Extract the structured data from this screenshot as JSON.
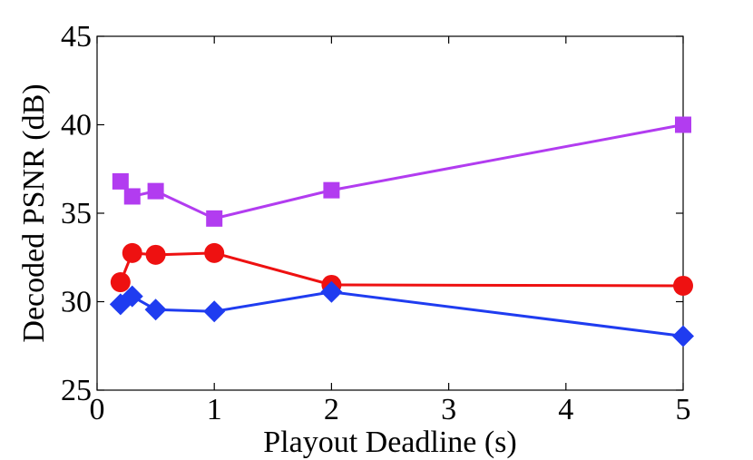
{
  "chart_data": {
    "type": "line",
    "title": "",
    "xlabel": "Playout Deadline (s)",
    "ylabel": "Decoded PSNR (dB)",
    "xlim": [
      0,
      5
    ],
    "ylim": [
      25,
      45
    ],
    "xticks": [
      0,
      1,
      2,
      3,
      4,
      5
    ],
    "yticks": [
      25,
      30,
      35,
      40,
      45
    ],
    "grid": false,
    "legend": "none",
    "series": [
      {
        "marker": "square",
        "color": "#b23cf0",
        "x": [
          0.2,
          0.3,
          0.5,
          1,
          2,
          5
        ],
        "y": [
          36.8,
          35.95,
          36.25,
          34.7,
          36.3,
          40.0
        ]
      },
      {
        "marker": "circle",
        "color": "#ee1111",
        "x": [
          0.2,
          0.3,
          0.5,
          1,
          2,
          5
        ],
        "y": [
          31.1,
          32.75,
          32.65,
          32.75,
          30.95,
          30.9
        ]
      },
      {
        "marker": "diamond",
        "color": "#1f3cf0",
        "x": [
          0.2,
          0.3,
          0.5,
          1,
          2,
          5
        ],
        "y": [
          29.85,
          30.3,
          29.55,
          29.45,
          30.55,
          28.05
        ]
      }
    ]
  }
}
